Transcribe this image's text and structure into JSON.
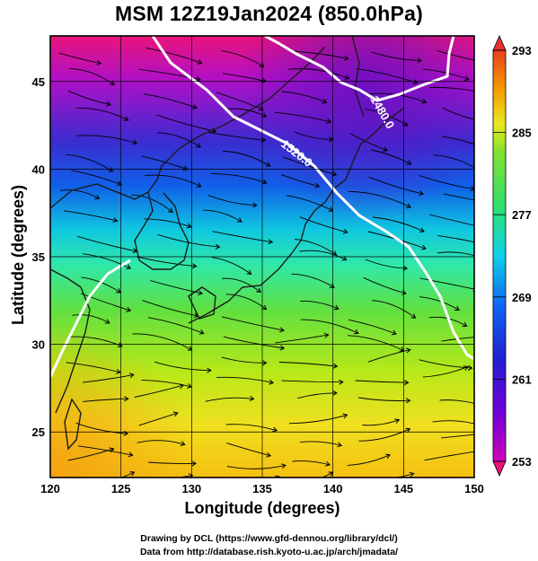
{
  "title": "MSM 12Z19Jan2024 (850.0hPa)",
  "map": {
    "xlabel": "Longitude (degrees)",
    "ylabel": "Latitude  (degrees)",
    "lon_ticks": [
      "120",
      "125",
      "130",
      "135",
      "140",
      "145",
      "150"
    ],
    "lat_ticks": [
      "25",
      "30",
      "35",
      "40",
      "45"
    ],
    "lon_range": [
      120,
      150
    ],
    "lat_range": [
      22.4,
      47.6
    ],
    "grid": true,
    "field": "temperature (shaded) with wind streamlines",
    "contour_labels": [
      "1480.0",
      "1520.0"
    ],
    "colors": {
      "contour": "#ffffff",
      "coast": "#1a1a1a",
      "grid": "#000000",
      "streamline": "#000000"
    }
  },
  "colorbar": {
    "ticks": [
      "293",
      "285",
      "277",
      "269",
      "261",
      "253"
    ],
    "range": [
      253,
      293
    ],
    "colors": [
      "#e8147a",
      "#a000d0",
      "#2f2fd0",
      "#1050e0",
      "#10c8e0",
      "#30e8a0",
      "#60e040",
      "#c8e810",
      "#f0e020",
      "#f5b000",
      "#f06020",
      "#e83030"
    ]
  },
  "credits": {
    "line1": "Drawing by DCL (https://www.gfd-dennou.org/library/dcl/)",
    "line2": "Data from http://database.rish.kyoto-u.ac.jp/arch/jmadata/"
  }
}
